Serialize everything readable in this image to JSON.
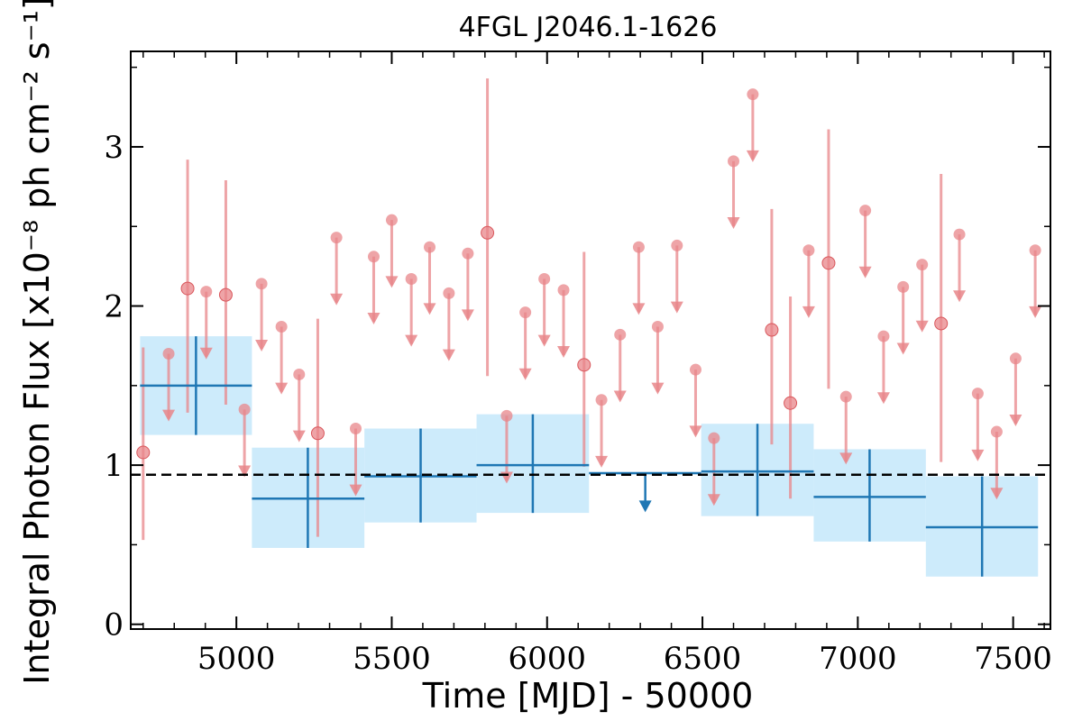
{
  "chart_data": {
    "type": "scatter",
    "title": "4FGL J2046.1-1626",
    "xlabel": "Time [MJD] - 50000",
    "ylabel": "Integral Photon Flux [x10⁻⁸ ph cm⁻² s⁻¹]",
    "xlim": [
      4660,
      7620
    ],
    "ylim": [
      -0.03,
      3.6
    ],
    "xticks": [
      5000,
      5500,
      6000,
      6500,
      7000,
      7500
    ],
    "xtick_labels": [
      "5000",
      "5500",
      "6000",
      "6500",
      "7000",
      "7500"
    ],
    "yticks": [
      0,
      1,
      2,
      3
    ],
    "ytick_labels": [
      "0",
      "1",
      "2",
      "3"
    ],
    "reference_flux": 0.94,
    "colors": {
      "monthly": "#e8868a",
      "yearly": "#1f77b4",
      "yearly_band": "#cdebfb",
      "reference": "#000000"
    },
    "series": [
      {
        "type": "points",
        "points": [
          {
            "x": 4700,
            "y": 1.08,
            "lo": 0.53,
            "hi": 1.74
          },
          {
            "x": 4843,
            "y": 2.11,
            "lo": 1.33,
            "hi": 2.92
          },
          {
            "x": 4966,
            "y": 2.07,
            "lo": 1.38,
            "hi": 2.79
          },
          {
            "x": 5262,
            "y": 1.2,
            "lo": 0.55,
            "hi": 1.92
          },
          {
            "x": 5808,
            "y": 2.46,
            "lo": 1.56,
            "hi": 3.43
          },
          {
            "x": 6119,
            "y": 1.63,
            "lo": 0.99,
            "hi": 2.34
          },
          {
            "x": 6723,
            "y": 1.85,
            "lo": 1.13,
            "hi": 2.61
          },
          {
            "x": 6783,
            "y": 1.39,
            "lo": 0.79,
            "hi": 2.06
          },
          {
            "x": 6906,
            "y": 2.27,
            "lo": 1.48,
            "hi": 3.11
          },
          {
            "x": 7268,
            "y": 1.89,
            "lo": 1.02,
            "hi": 2.83
          }
        ]
      },
      {
        "type": "upper_limits",
        "points": [
          {
            "x": 4782,
            "y": 1.7,
            "arrow_to": 1.28
          },
          {
            "x": 4903,
            "y": 2.09,
            "arrow_to": 1.67
          },
          {
            "x": 5026,
            "y": 1.35,
            "arrow_to": 0.93
          },
          {
            "x": 5081,
            "y": 2.14,
            "arrow_to": 1.72
          },
          {
            "x": 5145,
            "y": 1.87,
            "arrow_to": 1.45
          },
          {
            "x": 5202,
            "y": 1.57,
            "arrow_to": 1.15
          },
          {
            "x": 5322,
            "y": 2.43,
            "arrow_to": 2.01
          },
          {
            "x": 5384,
            "y": 1.23,
            "arrow_to": 0.81
          },
          {
            "x": 5442,
            "y": 2.31,
            "arrow_to": 1.89
          },
          {
            "x": 5500,
            "y": 2.54,
            "arrow_to": 2.12
          },
          {
            "x": 5563,
            "y": 2.17,
            "arrow_to": 1.75
          },
          {
            "x": 5622,
            "y": 2.37,
            "arrow_to": 1.95
          },
          {
            "x": 5684,
            "y": 2.08,
            "arrow_to": 1.66
          },
          {
            "x": 5745,
            "y": 2.33,
            "arrow_to": 1.91
          },
          {
            "x": 5870,
            "y": 1.31,
            "arrow_to": 0.89
          },
          {
            "x": 5930,
            "y": 1.96,
            "arrow_to": 1.54
          },
          {
            "x": 5991,
            "y": 2.17,
            "arrow_to": 1.75
          },
          {
            "x": 6053,
            "y": 2.1,
            "arrow_to": 1.68
          },
          {
            "x": 6175,
            "y": 1.41,
            "arrow_to": 0.99
          },
          {
            "x": 6235,
            "y": 1.82,
            "arrow_to": 1.4
          },
          {
            "x": 6295,
            "y": 2.37,
            "arrow_to": 1.95
          },
          {
            "x": 6356,
            "y": 1.87,
            "arrow_to": 1.45
          },
          {
            "x": 6418,
            "y": 2.38,
            "arrow_to": 1.96
          },
          {
            "x": 6478,
            "y": 1.6,
            "arrow_to": 1.18
          },
          {
            "x": 6537,
            "y": 1.17,
            "arrow_to": 0.75
          },
          {
            "x": 6600,
            "y": 2.91,
            "arrow_to": 2.49
          },
          {
            "x": 6662,
            "y": 3.33,
            "arrow_to": 2.91
          },
          {
            "x": 6842,
            "y": 2.35,
            "arrow_to": 1.93
          },
          {
            "x": 6962,
            "y": 1.43,
            "arrow_to": 1.01
          },
          {
            "x": 7024,
            "y": 2.6,
            "arrow_to": 2.18
          },
          {
            "x": 7083,
            "y": 1.81,
            "arrow_to": 1.39
          },
          {
            "x": 7146,
            "y": 2.12,
            "arrow_to": 1.7
          },
          {
            "x": 7207,
            "y": 2.26,
            "arrow_to": 1.84
          },
          {
            "x": 7327,
            "y": 2.45,
            "arrow_to": 2.03
          },
          {
            "x": 7386,
            "y": 1.45,
            "arrow_to": 1.03
          },
          {
            "x": 7447,
            "y": 1.21,
            "arrow_to": 0.79
          },
          {
            "x": 7508,
            "y": 1.67,
            "arrow_to": 1.25
          },
          {
            "x": 7571,
            "y": 2.35,
            "arrow_to": 1.93
          }
        ]
      },
      {
        "type": "binned",
        "bins": [
          {
            "x0": 4690,
            "x1": 5050,
            "xc": 4870,
            "y": 1.5,
            "lo": 1.19,
            "hi": 1.81
          },
          {
            "x0": 5050,
            "x1": 5412,
            "xc": 5230,
            "y": 0.79,
            "lo": 0.48,
            "hi": 1.11
          },
          {
            "x0": 5412,
            "x1": 5773,
            "xc": 5593,
            "y": 0.93,
            "lo": 0.64,
            "hi": 1.23
          },
          {
            "x0": 5773,
            "x1": 6135,
            "xc": 5954,
            "y": 1.0,
            "lo": 0.7,
            "hi": 1.32
          },
          {
            "x0": 6496,
            "x1": 6858,
            "xc": 6677,
            "y": 0.96,
            "lo": 0.68,
            "hi": 1.26
          },
          {
            "x0": 6858,
            "x1": 7219,
            "xc": 7038,
            "y": 0.8,
            "lo": 0.52,
            "hi": 1.1
          },
          {
            "x0": 7219,
            "x1": 7580,
            "xc": 7400,
            "y": 0.61,
            "lo": 0.3,
            "hi": 0.93
          }
        ],
        "upper_limits": [
          {
            "x0": 6135,
            "x1": 6496,
            "xc": 6316,
            "y": 0.95,
            "arrow_to": 0.71
          }
        ]
      }
    ]
  }
}
